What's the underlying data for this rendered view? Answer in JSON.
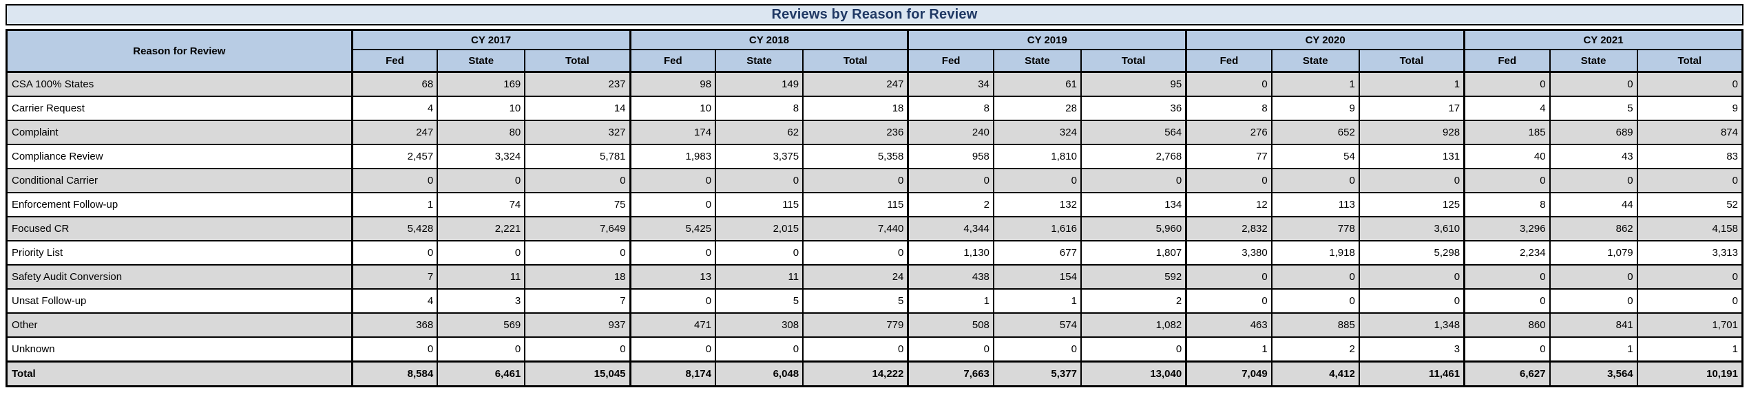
{
  "title": "Reviews by Reason for Review",
  "colors": {
    "title_background": "#DCE6F1",
    "title_text": "#1F3864",
    "header_background": "#B8CCE4",
    "shaded_row_background": "#D9D9D9",
    "border": "#000000"
  },
  "chart_data": {
    "type": "table",
    "title": "Reviews by Reason for Review",
    "row_label_header": "Reason for Review",
    "column_groups": [
      "CY 2017",
      "CY 2018",
      "CY 2019",
      "CY 2020",
      "CY 2021"
    ],
    "sub_columns": [
      "Fed",
      "State",
      "Total"
    ],
    "rows": [
      {
        "label": "CSA 100% States",
        "values": [
          68,
          169,
          237,
          98,
          149,
          247,
          34,
          61,
          95,
          0,
          1,
          1,
          0,
          0,
          0
        ]
      },
      {
        "label": "Carrier Request",
        "values": [
          4,
          10,
          14,
          10,
          8,
          18,
          8,
          28,
          36,
          8,
          9,
          17,
          4,
          5,
          9
        ]
      },
      {
        "label": "Complaint",
        "values": [
          247,
          80,
          327,
          174,
          62,
          236,
          240,
          324,
          564,
          276,
          652,
          928,
          185,
          689,
          874
        ]
      },
      {
        "label": "Compliance Review",
        "values": [
          2457,
          3324,
          5781,
          1983,
          3375,
          5358,
          958,
          1810,
          2768,
          77,
          54,
          131,
          40,
          43,
          83
        ]
      },
      {
        "label": "Conditional Carrier",
        "values": [
          0,
          0,
          0,
          0,
          0,
          0,
          0,
          0,
          0,
          0,
          0,
          0,
          0,
          0,
          0
        ]
      },
      {
        "label": "Enforcement Follow-up",
        "values": [
          1,
          74,
          75,
          0,
          115,
          115,
          2,
          132,
          134,
          12,
          113,
          125,
          8,
          44,
          52
        ]
      },
      {
        "label": "Focused CR",
        "values": [
          5428,
          2221,
          7649,
          5425,
          2015,
          7440,
          4344,
          1616,
          5960,
          2832,
          778,
          3610,
          3296,
          862,
          4158
        ]
      },
      {
        "label": "Priority List",
        "values": [
          0,
          0,
          0,
          0,
          0,
          0,
          1130,
          677,
          1807,
          3380,
          1918,
          5298,
          2234,
          1079,
          3313
        ]
      },
      {
        "label": "Safety Audit Conversion",
        "values": [
          7,
          11,
          18,
          13,
          11,
          24,
          438,
          154,
          592,
          0,
          0,
          0,
          0,
          0,
          0
        ]
      },
      {
        "label": "Unsat Follow-up",
        "values": [
          4,
          3,
          7,
          0,
          5,
          5,
          1,
          1,
          2,
          0,
          0,
          0,
          0,
          0,
          0
        ]
      },
      {
        "label": "Other",
        "values": [
          368,
          569,
          937,
          471,
          308,
          779,
          508,
          574,
          1082,
          463,
          885,
          1348,
          860,
          841,
          1701
        ]
      },
      {
        "label": "Unknown",
        "values": [
          0,
          0,
          0,
          0,
          0,
          0,
          0,
          0,
          0,
          1,
          2,
          3,
          0,
          1,
          1
        ]
      },
      {
        "label": "Total",
        "is_total": true,
        "values": [
          8584,
          6461,
          15045,
          8174,
          6048,
          14222,
          7663,
          5377,
          13040,
          7049,
          4412,
          11461,
          6627,
          3564,
          10191
        ]
      }
    ]
  }
}
